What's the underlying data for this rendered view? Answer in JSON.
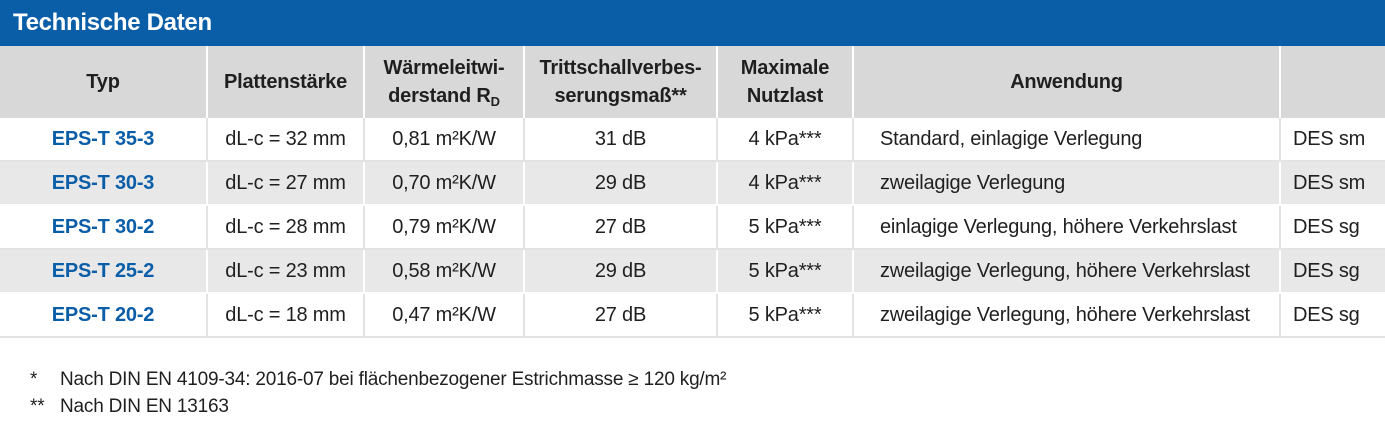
{
  "title": "Technische Daten",
  "headers": {
    "typ": "Typ",
    "plattenstaerke": "Plattenstärke",
    "waerme_line1": "Wärmeleitwi-",
    "waerme_line2": "derstand R",
    "waerme_sub": "D",
    "tritt_line1": "Trittschallverbes-",
    "tritt_line2": "serungsmaß**",
    "nutz_line1": "Maximale",
    "nutz_line2": "Nutzlast",
    "anwendung": "Anwendung",
    "last": ""
  },
  "rows": [
    {
      "typ": "EPS-T 35-3",
      "staerke": "dL-c = 32 mm",
      "waerme": "0,81 m²K/W",
      "tritt": "31 dB",
      "nutz": "4 kPa***",
      "anwendung": "Standard, einlagige Verlegung",
      "des": "DES sm"
    },
    {
      "typ": "EPS-T 30-3",
      "staerke": "dL-c = 27 mm",
      "waerme": "0,70 m²K/W",
      "tritt": "29 dB",
      "nutz": "4 kPa***",
      "anwendung": "zweilagige Verlegung",
      "des": "DES sm"
    },
    {
      "typ": "EPS-T 30-2",
      "staerke": "dL-c = 28 mm",
      "waerme": "0,79 m²K/W",
      "tritt": "27 dB",
      "nutz": "5 kPa***",
      "anwendung": "einlagige Verlegung, höhere Verkehrslast",
      "des": "DES sg"
    },
    {
      "typ": "EPS-T 25-2",
      "staerke": "dL-c = 23 mm",
      "waerme": "0,58 m²K/W",
      "tritt": "29 dB",
      "nutz": "5 kPa***",
      "anwendung": "zweilagige Verlegung, höhere Verkehrslast",
      "des": "DES sg"
    },
    {
      "typ": "EPS-T 20-2",
      "staerke": "dL-c = 18 mm",
      "waerme": "0,47 m²K/W",
      "tritt": "27 dB",
      "nutz": "5 kPa***",
      "anwendung": "zweilagige Verlegung, höhere Verkehrslast",
      "des": "DES sg"
    }
  ],
  "footnotes": [
    {
      "mark": "*",
      "text": "Nach DIN EN 4109-34: 2016-07 bei flächenbezogener Estrichmasse ≥ 120 kg/m²"
    },
    {
      "mark": "**",
      "text": "Nach DIN EN 13163"
    }
  ],
  "colors": {
    "title_bar": "#0a5ea8",
    "header_bg": "#d8d8d8",
    "stripe_bg": "#e8e8e8",
    "type_text": "#0a5ea8"
  }
}
